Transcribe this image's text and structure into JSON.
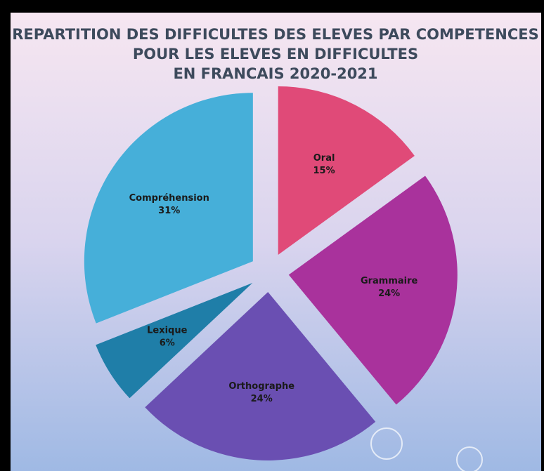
{
  "chart_data": {
    "type": "pie",
    "title": [
      "REPARTITION DES DIFFICULTES DES ELEVES PAR COMPETENCES",
      "POUR LES ELEVES EN DIFFICULTES",
      "EN FRANCAIS 2020-2021"
    ],
    "categories": [
      "Oral",
      "Grammaire",
      "Orthographe",
      "Lexique",
      "Compréhension"
    ],
    "values": [
      15,
      24,
      24,
      6,
      31
    ],
    "value_labels": [
      "15%",
      "24%",
      "24%",
      "6%",
      "31%"
    ],
    "colors": [
      "#e04a78",
      "#a9329c",
      "#6a4fb2",
      "#1f7ea8",
      "#46afd9"
    ]
  }
}
